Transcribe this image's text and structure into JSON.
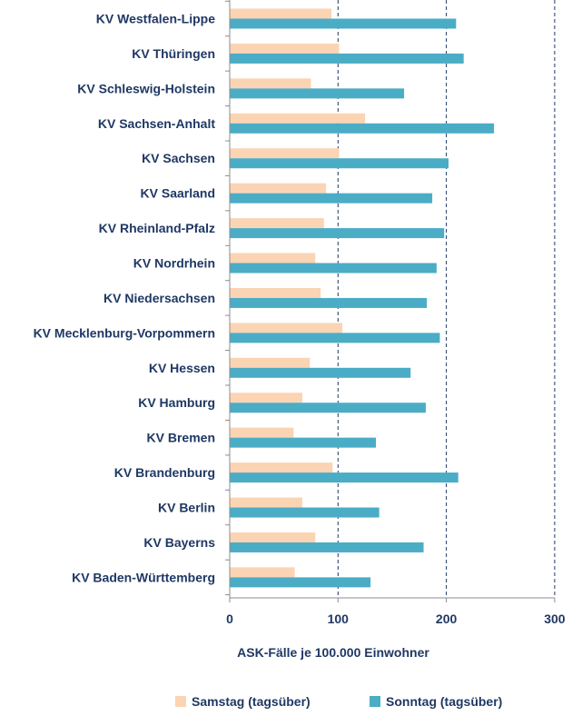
{
  "chart_data": {
    "type": "bar",
    "orientation": "horizontal",
    "categories": [
      "KV Westfalen-Lippe",
      "KV Thüringen",
      "KV Schleswig-Holstein",
      "KV Sachsen-Anhalt",
      "KV Sachsen",
      "KV Saarland",
      "KV Rheinland-Pfalz",
      "KV Nordrhein",
      "KV Niedersachsen",
      "KV Mecklenburg-Vorpommern",
      "KV Hessen",
      "KV Hamburg",
      "KV Bremen",
      "KV Brandenburg",
      "KV Berlin",
      "KV Bayerns",
      "KV Baden-Württemberg"
    ],
    "series": [
      {
        "name": "Samstag (tagsüber)",
        "color": "#fbd4b4",
        "values": [
          94,
          101,
          75,
          125,
          101,
          89,
          87,
          79,
          84,
          104,
          74,
          67,
          59,
          95,
          67,
          79,
          60
        ]
      },
      {
        "name": "Sonntag (tagsüber)",
        "color": "#4bacc6",
        "values": [
          209,
          216,
          161,
          244,
          202,
          187,
          198,
          191,
          182,
          194,
          167,
          181,
          135,
          211,
          138,
          179,
          130
        ]
      }
    ],
    "xlabel": "ASK-Fälle je 100.000 Einwohner",
    "ylabel": "",
    "xlim": [
      0,
      300
    ],
    "xticks": [
      0,
      100,
      200,
      300
    ],
    "grid": "vertical dashed at 100, 200, 300",
    "legend_position": "bottom"
  }
}
